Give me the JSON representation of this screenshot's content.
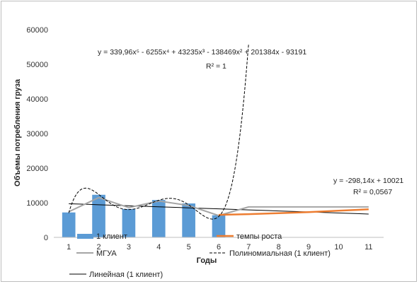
{
  "chart_data": {
    "type": "bar",
    "ylabel": "Объемы потребления груза",
    "xlabel": "Годы",
    "ylim": [
      0,
      60000
    ],
    "yticks": [
      0,
      10000,
      20000,
      30000,
      40000,
      50000,
      60000
    ],
    "ytick_labels": [
      "0",
      "10000",
      "20000",
      "30000",
      "40000",
      "50000",
      "60000"
    ],
    "categories": [
      "1",
      "2",
      "3",
      "4",
      "5",
      "6",
      "7",
      "8",
      "9",
      "10",
      "11"
    ],
    "grid": false,
    "series": [
      {
        "name": "1 клиент",
        "kind": "bar",
        "color": "#5b9bd5",
        "values": [
          7200,
          12300,
          8200,
          10800,
          9800,
          6400,
          null,
          null,
          null,
          null,
          null
        ]
      },
      {
        "name": "темпы роста",
        "kind": "line",
        "color": "#ed7d31",
        "values": [
          null,
          null,
          null,
          null,
          null,
          6500,
          6700,
          7000,
          7300,
          7700,
          8100
        ]
      },
      {
        "name": "МГУА",
        "kind": "line",
        "color": "#a5a5a5",
        "values": [
          7400,
          11500,
          8600,
          10500,
          9200,
          6300,
          8800,
          8800,
          8800,
          8800,
          8800
        ]
      },
      {
        "name": "Полиномиальная (1 клиент)",
        "kind": "line",
        "color": "#000000",
        "dash": "dashed",
        "values": [
          7200,
          12300,
          8200,
          10800,
          9800,
          6400,
          56000,
          null,
          null,
          null,
          null
        ]
      },
      {
        "name": "Линейная (1 клиент)",
        "kind": "line",
        "color": "#000000",
        "values": [
          9723,
          9425,
          9127,
          8829,
          8531,
          8232,
          7934,
          7636,
          7338,
          7040,
          6742
        ]
      }
    ],
    "annotations": [
      {
        "id": "poly_eq",
        "text": "y = 339,96x⁵ - 6255x⁴ + 43235x³ - 138469x² + 201384x - 93191"
      },
      {
        "id": "poly_r2",
        "text": "R² = 1"
      },
      {
        "id": "lin_eq",
        "text": "y = -298,14x + 10021"
      },
      {
        "id": "lin_r2",
        "text": "R² = 0,0567"
      }
    ],
    "legend_position": "bottom"
  }
}
